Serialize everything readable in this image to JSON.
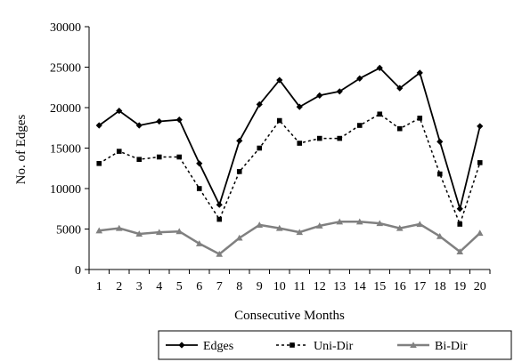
{
  "chart_data": {
    "type": "line",
    "title": "",
    "xlabel": "Consecutive Months",
    "ylabel": "No. of Edges",
    "x": [
      1,
      2,
      3,
      4,
      5,
      6,
      7,
      8,
      9,
      10,
      11,
      12,
      13,
      14,
      15,
      16,
      17,
      18,
      19,
      20
    ],
    "ylim": [
      0,
      30000
    ],
    "yticks": [
      0,
      5000,
      10000,
      15000,
      20000,
      25000,
      30000
    ],
    "grid": false,
    "legend_position": "bottom-right",
    "series": [
      {
        "name": "Edges",
        "color": "#000000",
        "line_style": "solid",
        "marker": "diamond",
        "values": [
          17800,
          19600,
          17800,
          18300,
          18500,
          13100,
          8000,
          15900,
          20400,
          23400,
          20100,
          21500,
          22000,
          23600,
          24900,
          22400,
          24300,
          15800,
          7500,
          17700
        ]
      },
      {
        "name": "Uni-Dir",
        "color": "#000000",
        "line_style": "dashed",
        "marker": "square",
        "values": [
          13100,
          14600,
          13600,
          13900,
          13900,
          10000,
          6200,
          12100,
          15000,
          18400,
          15600,
          16200,
          16200,
          17800,
          19200,
          17400,
          18700,
          11800,
          5600,
          13200
        ]
      },
      {
        "name": "Bi-Dir",
        "color": "#808080",
        "line_style": "solid",
        "marker": "triangle",
        "values": [
          4800,
          5100,
          4400,
          4600,
          4700,
          3200,
          1900,
          3900,
          5500,
          5100,
          4600,
          5400,
          5900,
          5900,
          5700,
          5100,
          5600,
          4100,
          2200,
          4500
        ]
      }
    ]
  }
}
